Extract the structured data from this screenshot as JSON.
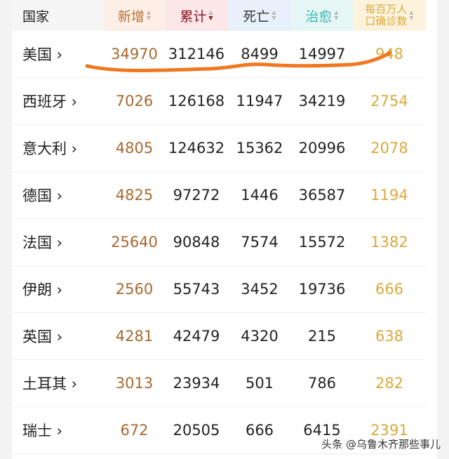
{
  "header": {
    "country": "国家",
    "new": "新增",
    "total": "累计",
    "deaths": "死亡",
    "recovered": "治愈",
    "per_million_line1": "每百万人",
    "per_million_line2": "口确诊数",
    "sorted_column": "total",
    "sort_direction": "desc"
  },
  "colors": {
    "new": "#a8692f",
    "total": "#8b1a2a",
    "recovered": "#3cb8b0",
    "per_million": "#d9aa3b",
    "annotation": "#f07820"
  },
  "rows": [
    {
      "country": "美国 ›",
      "new": "34970",
      "total": "312146",
      "deaths": "8499",
      "recovered": "14997",
      "per_million": "948"
    },
    {
      "country": "西班牙 ›",
      "new": "7026",
      "total": "126168",
      "deaths": "11947",
      "recovered": "34219",
      "per_million": "2754"
    },
    {
      "country": "意大利 ›",
      "new": "4805",
      "total": "124632",
      "deaths": "15362",
      "recovered": "20996",
      "per_million": "2078"
    },
    {
      "country": "德国 ›",
      "new": "4825",
      "total": "97272",
      "deaths": "1446",
      "recovered": "36587",
      "per_million": "1194"
    },
    {
      "country": "法国 ›",
      "new": "25640",
      "total": "90848",
      "deaths": "7574",
      "recovered": "15572",
      "per_million": "1382"
    },
    {
      "country": "伊朗 ›",
      "new": "2560",
      "total": "55743",
      "deaths": "3452",
      "recovered": "19736",
      "per_million": "666"
    },
    {
      "country": "英国 ›",
      "new": "4281",
      "total": "42479",
      "deaths": "4320",
      "recovered": "215",
      "per_million": "638"
    },
    {
      "country": "土耳其 ›",
      "new": "3013",
      "total": "23934",
      "deaths": "501",
      "recovered": "786",
      "per_million": "282"
    },
    {
      "country": "瑞士 ›",
      "new": "672",
      "total": "20505",
      "deaths": "666",
      "recovered": "6415",
      "per_million": "2391"
    }
  ],
  "watermark": "头条 @乌鲁木齐那些事儿"
}
